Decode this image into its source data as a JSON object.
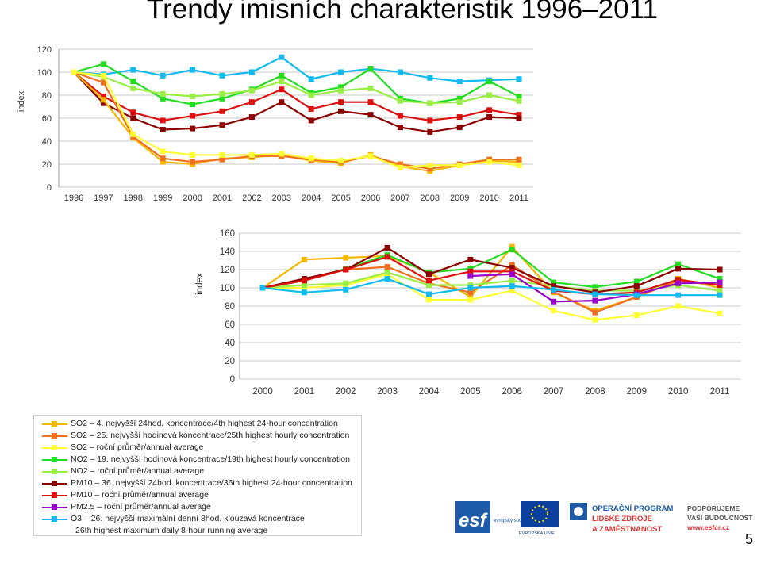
{
  "page": {
    "title": "Trendy imisních charakteristik 1996–2011",
    "page_number": "5"
  },
  "colors": {
    "so2_24h": "#f5b800",
    "so2_1h": "#f07020",
    "so2_annual": "#ffff33",
    "no2_1h": "#22dd22",
    "no2_annual": "#99ee44",
    "pm10_24h": "#8b0000",
    "pm10_annual": "#dd1111",
    "pm25_annual": "#9900cc",
    "o3_8h": "#11bbee"
  },
  "legend": {
    "items": [
      {
        "key": "so2_24h",
        "lines": [
          "SO2 – 4. nejvyšší 24hod. koncentrace/4th highest 24-hour concentration"
        ]
      },
      {
        "key": "so2_1h",
        "lines": [
          "SO2 – 25. nejvyšší hodinová koncentrace/25th highest hourly concentration"
        ]
      },
      {
        "key": "so2_annual",
        "lines": [
          "SO2 – roční průměr/annual average"
        ]
      },
      {
        "key": "no2_1h",
        "lines": [
          "NO2 – 19. nejvyšší hodinová koncentrace/19th highest hourly concentration"
        ]
      },
      {
        "key": "no2_annual",
        "lines": [
          "NO2 – roční průměr/annual average"
        ]
      },
      {
        "key": "pm10_24h",
        "lines": [
          "PM10 – 36. nejvyšší 24hod. koncentrace/36th highest 24-hour concentration"
        ]
      },
      {
        "key": "pm10_annual",
        "lines": [
          "PM10 – roční průměr/annual average"
        ]
      },
      {
        "key": "pm25_annual",
        "lines": [
          "PM2.5 – roční průměr/annual average"
        ]
      },
      {
        "key": "o3_8h",
        "lines": [
          "O3 – 26. nejvyšší maximální denní 8hod. klouzavá koncentrace",
          "26th highest maximum daily 8-hour running average"
        ]
      }
    ]
  },
  "logos": {
    "esf_text": "esf",
    "esf_sub": "evropský sociální fond v ČR",
    "eu_label": "EVROPSKÁ UNIE",
    "op_lines": [
      "OPERAČNÍ PROGRAM",
      "LIDSKÉ ZDROJE",
      "A ZAMĚSTNANOST"
    ],
    "support_lines": [
      "PODPORUJEME",
      "VAŠI BUDOUCNOST",
      "www.esfcr.cz"
    ]
  },
  "chart_data": [
    {
      "type": "line",
      "ylabel": "index",
      "ylim": [
        0,
        120
      ],
      "yticks": [
        0,
        20,
        40,
        60,
        80,
        100,
        120
      ],
      "x": [
        "1996",
        "1997",
        "1998",
        "1999",
        "2000",
        "2001",
        "2002",
        "2003",
        "2004",
        "2005",
        "2006",
        "2007",
        "2008",
        "2009",
        "2010",
        "2011"
      ],
      "grid": true,
      "series": [
        {
          "key": "o3_8h",
          "values": [
            100,
            98,
            102,
            97,
            102,
            97,
            100,
            113,
            94,
            100,
            103,
            100,
            95,
            92,
            93,
            94
          ]
        },
        {
          "key": "no2_1h",
          "values": [
            100,
            107,
            92,
            77,
            72,
            77,
            85,
            97,
            82,
            87,
            103,
            77,
            73,
            77,
            92,
            79
          ]
        },
        {
          "key": "no2_annual",
          "values": [
            100,
            96,
            86,
            81,
            79,
            81,
            84,
            92,
            80,
            84,
            86,
            75,
            73,
            74,
            80,
            75
          ]
        },
        {
          "key": "pm10_annual",
          "values": [
            100,
            79,
            65,
            58,
            62,
            66,
            74,
            85,
            68,
            74,
            74,
            62,
            58,
            61,
            67,
            63
          ]
        },
        {
          "key": "pm10_24h",
          "values": [
            100,
            73,
            60,
            50,
            51,
            54,
            61,
            74,
            58,
            66,
            63,
            52,
            48,
            52,
            61,
            60
          ]
        },
        {
          "key": "so2_24h",
          "values": [
            100,
            76,
            43,
            22,
            20,
            25,
            26,
            28,
            23,
            21,
            28,
            18,
            14,
            19,
            23,
            22
          ]
        },
        {
          "key": "so2_1h",
          "values": [
            100,
            91,
            44,
            25,
            22,
            24,
            27,
            27,
            24,
            22,
            27,
            20,
            16,
            20,
            24,
            24
          ]
        },
        {
          "key": "so2_annual",
          "values": [
            100,
            97,
            46,
            31,
            28,
            28,
            28,
            29,
            25,
            23,
            27,
            17,
            19,
            19,
            22,
            19
          ]
        }
      ]
    },
    {
      "type": "line",
      "ylabel": "index",
      "ylim": [
        0,
        160
      ],
      "yticks": [
        0,
        20,
        40,
        60,
        80,
        100,
        120,
        140,
        160
      ],
      "x": [
        "2000",
        "2001",
        "2002",
        "2003",
        "2004",
        "2005",
        "2006",
        "2007",
        "2008",
        "2009",
        "2010",
        "2011"
      ],
      "grid": true,
      "series": [
        {
          "key": "so2_24h",
          "values": [
            100,
            131,
            133,
            135,
            117,
            90,
            145,
            95,
            75,
            90,
            110,
            100
          ]
        },
        {
          "key": "so2_1h",
          "values": [
            100,
            110,
            120,
            123,
            105,
            95,
            125,
            96,
            73,
            90,
            108,
            103
          ]
        },
        {
          "key": "so2_annual",
          "values": [
            100,
            100,
            103,
            115,
            87,
            87,
            97,
            75,
            65,
            70,
            80,
            72
          ]
        },
        {
          "key": "no2_1h",
          "values": [
            100,
            108,
            121,
            136,
            117,
            121,
            142,
            106,
            101,
            107,
            126,
            110
          ]
        },
        {
          "key": "no2_annual",
          "values": [
            100,
            103,
            105,
            117,
            103,
            103,
            108,
            102,
            97,
            97,
            103,
            97
          ]
        },
        {
          "key": "pm10_24h",
          "values": [
            100,
            110,
            120,
            144,
            115,
            131,
            122,
            102,
            95,
            102,
            121,
            120
          ]
        },
        {
          "key": "pm10_annual",
          "values": [
            100,
            108,
            120,
            134,
            108,
            118,
            118,
            97,
            93,
            95,
            109,
            103
          ]
        },
        {
          "key": "pm25_annual",
          "values": [
            null,
            null,
            null,
            null,
            null,
            113,
            115,
            85,
            86,
            93,
            105,
            106
          ]
        },
        {
          "key": "o3_8h",
          "values": [
            100,
            95,
            98,
            110,
            93,
            100,
            102,
            98,
            93,
            92,
            92,
            92
          ]
        }
      ]
    }
  ]
}
